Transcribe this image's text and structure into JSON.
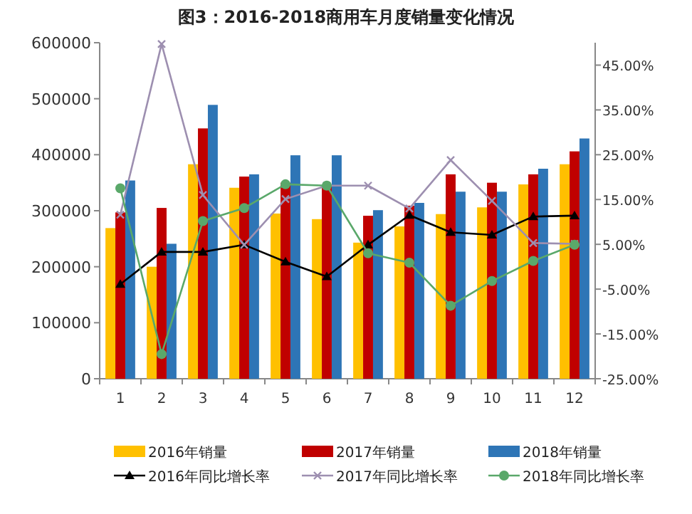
{
  "chart_data": {
    "type": "bar",
    "title": "图3：2016-2018商用车月度销量变化情况",
    "categories": [
      "1",
      "2",
      "3",
      "4",
      "5",
      "6",
      "7",
      "8",
      "9",
      "10",
      "11",
      "12"
    ],
    "ylim": [
      0,
      600000
    ],
    "yticks": [
      0,
      100000,
      200000,
      300000,
      400000,
      500000,
      600000
    ],
    "y2lim": [
      -25,
      50
    ],
    "y2ticks": [
      {
        "value": -25,
        "label": "-25.00%"
      },
      {
        "value": -15,
        "label": "-15.00%"
      },
      {
        "value": -5,
        "label": "-5.00%"
      },
      {
        "value": 5,
        "label": "5.00%"
      },
      {
        "value": 15,
        "label": "15.00%"
      },
      {
        "value": 25,
        "label": "25.00%"
      },
      {
        "value": 35,
        "label": "35.00%"
      },
      {
        "value": 45,
        "label": "45.00%"
      }
    ],
    "legend": "bottom",
    "grid": false,
    "series": [
      {
        "name": "2016年销量",
        "type": "bar",
        "color": "#ffc000",
        "values": [
          269000,
          200000,
          383000,
          341000,
          295000,
          285000,
          243000,
          272000,
          294000,
          306000,
          347000,
          383000
        ]
      },
      {
        "name": "2017年销量",
        "type": "bar",
        "color": "#c00000",
        "values": [
          297000,
          305000,
          447000,
          361000,
          350000,
          346000,
          291000,
          309000,
          365000,
          350000,
          365000,
          406000
        ]
      },
      {
        "name": "2018年销量",
        "type": "bar",
        "color": "#2e75b6",
        "values": [
          354000,
          241000,
          489000,
          365000,
          399000,
          399000,
          301000,
          314000,
          334000,
          334000,
          375000,
          429000
        ]
      },
      {
        "name": "2016年同比增长率",
        "type": "line",
        "axis": "y2",
        "marker": "triangle",
        "color": "#000000",
        "values": [
          -3.9,
          3.3,
          3.3,
          4.9,
          1.1,
          -2.2,
          4.9,
          11.5,
          7.7,
          7.1,
          11.2,
          11.4
        ]
      },
      {
        "name": "2017年同比增长率",
        "type": "line",
        "axis": "y2",
        "marker": "cross",
        "color": "#9d8fb0",
        "values": [
          11.6,
          49.7,
          16,
          4.9,
          15.1,
          18.1,
          18.1,
          13,
          23.8,
          14.7,
          5.3,
          5.1
        ]
      },
      {
        "name": "2018年同比增长率",
        "type": "line",
        "axis": "y2",
        "marker": "circle",
        "color": "#5aa86a",
        "values": [
          17.5,
          -19.5,
          10.2,
          13.1,
          18.4,
          18.1,
          3,
          0.9,
          -8.7,
          -3.2,
          1.3,
          4.9
        ]
      }
    ]
  }
}
